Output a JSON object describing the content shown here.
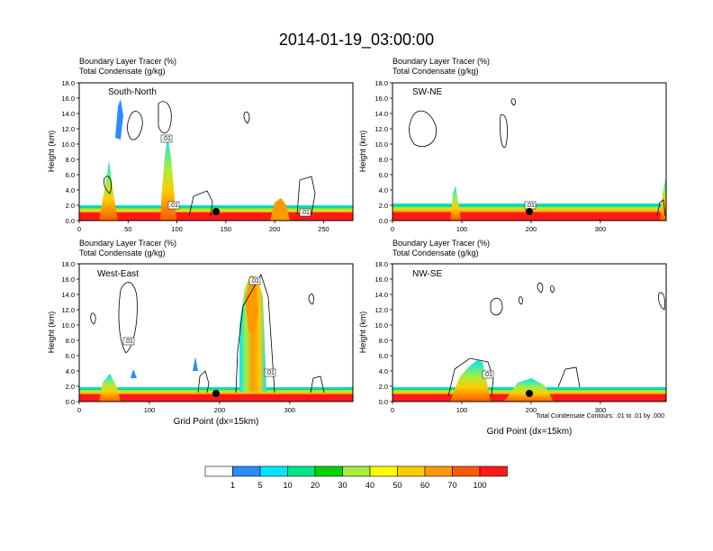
{
  "figure_title": "2014-01-19_03:00:00",
  "colorbar": {
    "colors": [
      "#ffffff",
      "#2b8cff",
      "#00e5ff",
      "#00e58a",
      "#00d400",
      "#a6ee3c",
      "#ffff00",
      "#ffcc00",
      "#ff9900",
      "#ff5a00",
      "#ff1a1a"
    ],
    "labels": [
      "1",
      "5",
      "10",
      "20",
      "30",
      "40",
      "50",
      "60",
      "70",
      "100"
    ]
  },
  "contour_note": "Total Condensate Contours: .01 to .01 by .000",
  "chart_data": [
    {
      "type": "heatmap",
      "id": "sn",
      "panel_label": "South-North",
      "title_line1": "Boundary Layer Tracer   (%)",
      "title_line2": "Total Condensate   (g/kg)",
      "xlabel": "",
      "ylabel": "Height (km)",
      "xlim": [
        0,
        280
      ],
      "ylim": [
        0,
        18
      ],
      "xticks": [
        "0",
        "50",
        "100",
        "150",
        "200",
        "250"
      ],
      "yticks": [
        "0.0",
        "2.0",
        "4.0",
        "6.0",
        "8.0",
        "10.0",
        "12.0",
        "14.0",
        "16.0",
        "18.0"
      ],
      "marker_x": 140,
      "contour_labels": [
        ".01",
        ".01",
        ".01"
      ]
    },
    {
      "type": "heatmap",
      "id": "swne",
      "panel_label": "SW-NE",
      "title_line1": "Boundary Layer Tracer   (%)",
      "title_line2": "Total Condensate   (g/kg)",
      "xlabel": "",
      "ylabel": "Height (km)",
      "xlim": [
        0,
        395
      ],
      "ylim": [
        0,
        18
      ],
      "xticks": [
        "0",
        "100",
        "200",
        "300"
      ],
      "yticks": [
        "0.0",
        "2.0",
        "4.0",
        "6.0",
        "8.0",
        "10.0",
        "12.0",
        "14.0",
        "16.0",
        "18.0"
      ],
      "marker_x": 197,
      "contour_labels": [
        ".01"
      ]
    },
    {
      "type": "heatmap",
      "id": "we",
      "panel_label": "West-East",
      "title_line1": "Boundary Layer Tracer   (%)",
      "title_line2": "Total Condensate   (g/kg)",
      "xlabel": "Grid Point (dx=15km)",
      "ylabel": "Height (km)",
      "xlim": [
        0,
        390
      ],
      "ylim": [
        0,
        18
      ],
      "xticks": [
        "0",
        "100",
        "200",
        "300"
      ],
      "yticks": [
        "0.0",
        "2.0",
        "4.0",
        "6.0",
        "8.0",
        "10.0",
        "12.0",
        "14.0",
        "16.0",
        "18.0"
      ],
      "marker_x": 197,
      "contour_labels": [
        ".01",
        ".01",
        ".01"
      ]
    },
    {
      "type": "heatmap",
      "id": "nwse",
      "panel_label": "NW-SE",
      "title_line1": "Boundary Layer Tracer   (%)",
      "title_line2": "Total Condensate   (g/kg)",
      "xlabel": "Grid Point (dx=15km)",
      "ylabel": "Height (km)",
      "xlim": [
        0,
        395
      ],
      "ylim": [
        0,
        18
      ],
      "xticks": [
        "0",
        "100",
        "200",
        "300"
      ],
      "yticks": [
        "0.0",
        "2.0",
        "4.0",
        "6.0",
        "8.0",
        "10.0",
        "12.0",
        "14.0",
        "16.0",
        "18.0"
      ],
      "marker_x": 197,
      "contour_labels": [
        ".01"
      ]
    }
  ]
}
